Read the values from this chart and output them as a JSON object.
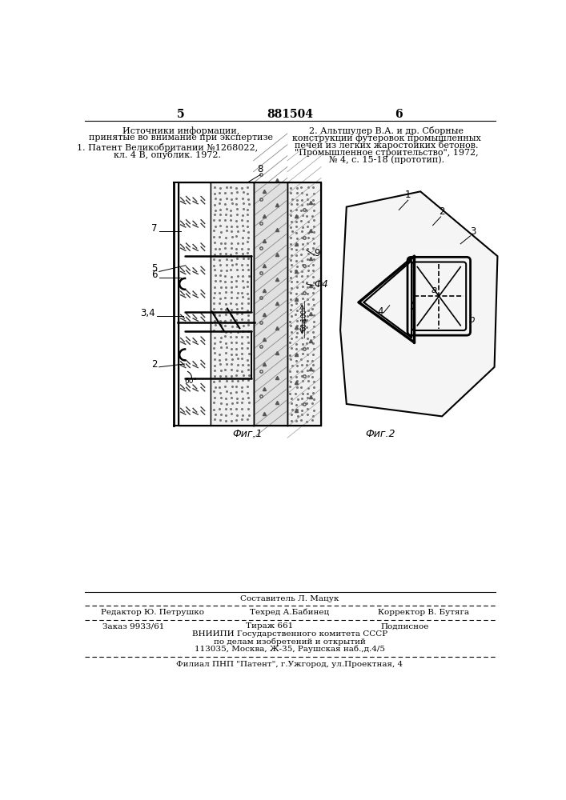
{
  "page_number_left": "5",
  "page_number_center": "881504",
  "page_number_right": "6",
  "top_left_title": "Источники информации,",
  "top_left_subtitle": "принятые во внимание при экспертизе",
  "ref1_line1": "1. Патент Великобритании №1268022,",
  "ref1_line2": "кл. 4 В, опублик. 1972.",
  "ref2_line1": "2. Альтшулер В.А. и др. Сборные",
  "ref2_line2": "конструкции футеровок промышленных",
  "ref2_line3": "печей из легких жаростойких бетонов.",
  "ref2_line4": "\"Промышленное строительство\", 1972,",
  "ref2_line5": "№ 4, с. 15-18 (прототип).",
  "fig1_label": "Фиг.1",
  "fig2_label": "Фиг.2",
  "bottom_editor": "Редактор Ю. Петрушко",
  "bottom_tech": "Техред А.Бабинец",
  "bottom_corrector": "Корректор В. Бутяга",
  "bottom_composer": "Составитель Л. Мацук",
  "bottom_order": "Заказ 9933/61",
  "bottom_circulation": "Тираж 661",
  "bottom_subscription": "Подписное",
  "bottom_org1": "ВНИИПИ Государственного комитета СССР",
  "bottom_org2": "по делам изобретений и открытий",
  "bottom_org3": "113035, Москва, Ж-35, Раушская наб.,д.4/5",
  "bottom_branch": "Филиал ПНП \"Патент\", г.Ужгород, ул.Проектная, 4",
  "bg_color": "#ffffff",
  "line_color": "#000000",
  "text_color": "#000000"
}
